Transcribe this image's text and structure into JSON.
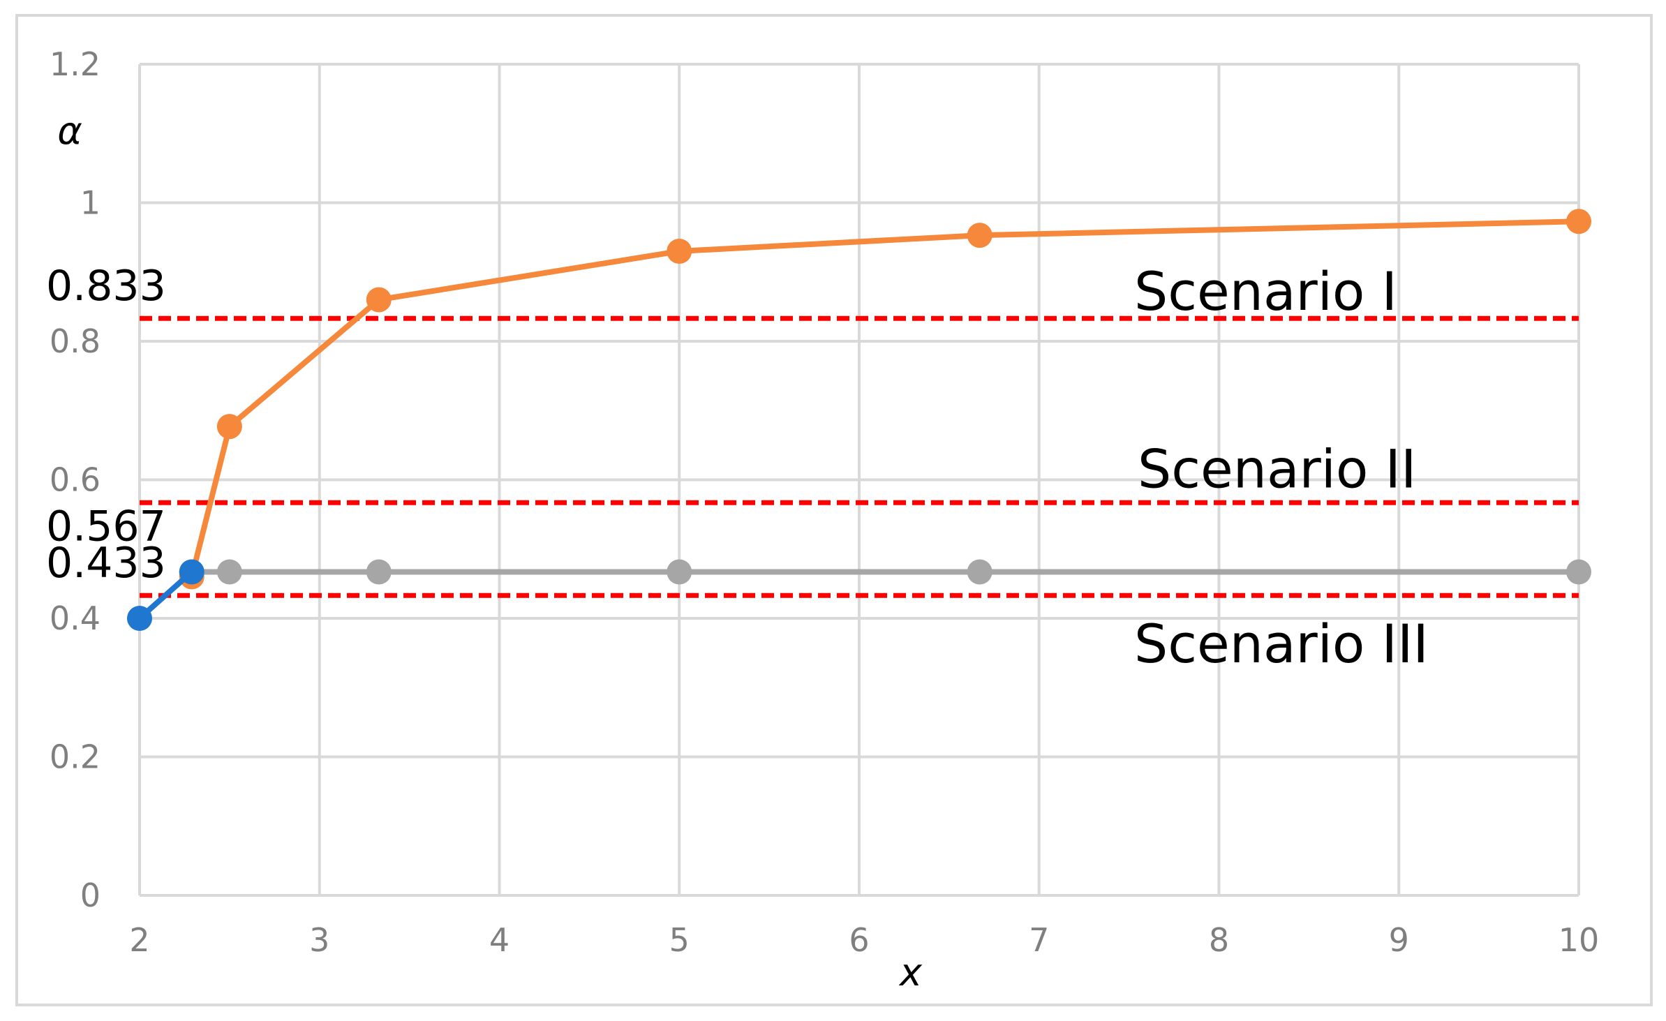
{
  "chart_data": {
    "type": "line",
    "xlabel": "x",
    "ylabel": "α",
    "xlim": [
      2,
      10
    ],
    "ylim": [
      0,
      1.2
    ],
    "xticks": [
      2,
      3,
      4,
      5,
      6,
      7,
      8,
      9,
      10
    ],
    "yticks": [
      0,
      0.2,
      0.4,
      0.6,
      0.8,
      1,
      1.2
    ],
    "xtick_labels": [
      "2",
      "3",
      "4",
      "5",
      "6",
      "7",
      "8",
      "9",
      "10"
    ],
    "ytick_labels": [
      "0",
      "0.2",
      "0.4",
      "0.6",
      "0.8",
      "1",
      "1.2"
    ],
    "grid": true,
    "legend": "none",
    "series": [
      {
        "color": "#1f77d0",
        "x": [
          2,
          2.29
        ],
        "y": [
          0.4,
          0.467
        ]
      },
      {
        "color": "#f5883a",
        "x": [
          2.29,
          2.5,
          3.33,
          5,
          6.67,
          10
        ],
        "y": [
          0.46,
          0.677,
          0.86,
          0.93,
          0.953,
          0.973
        ]
      },
      {
        "color": "#a6a6a6",
        "x": [
          2.29,
          2.5,
          3.33,
          5,
          6.67,
          10
        ],
        "y": [
          0.467,
          0.467,
          0.467,
          0.467,
          0.467,
          0.467
        ]
      }
    ],
    "reference_lines": [
      {
        "value": 0.833,
        "value_label": "0.833",
        "name": "Scenario I",
        "color": "#ff0000"
      },
      {
        "value": 0.567,
        "value_label": "0.567",
        "name": "Scenario II",
        "color": "#ff0000"
      },
      {
        "value": 0.433,
        "value_label": "0.433",
        "name": "Scenario III",
        "color": "#ff0000"
      }
    ]
  }
}
